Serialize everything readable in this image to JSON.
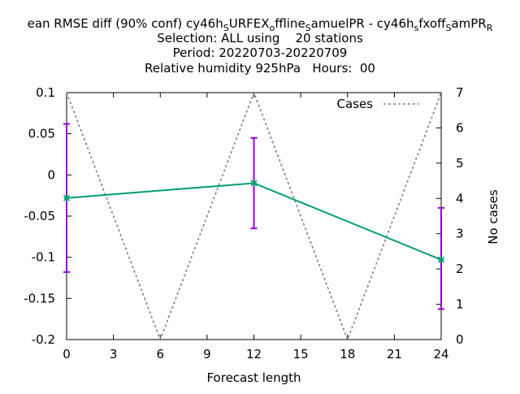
{
  "chart_data": {
    "type": "line",
    "title_lines": [
      "ean RMSE diff (90% conf) cy46h_SURFEX_offline_SamuelPR - cy46h_sfxoff_SamPR_R",
      "Selection: ALL using    20 stations",
      "Period: 20220703-20220709",
      "Relative humidity 925hPa   Hours:  00"
    ],
    "title_rich": [
      {
        "t": "ean RMSE diff (90% conf) cy46h"
      },
      {
        "t": "S",
        "sub": true
      },
      {
        "t": "URFEX"
      },
      {
        "t": "o",
        "sub": true
      },
      {
        "t": "ffline"
      },
      {
        "t": "S",
        "sub": true
      },
      {
        "t": "amuelPR - cy46h"
      },
      {
        "t": "s",
        "sub": true
      },
      {
        "t": "fxoff"
      },
      {
        "t": "S",
        "sub": true
      },
      {
        "t": "amPR"
      },
      {
        "t": "R",
        "sub": true
      }
    ],
    "xlabel": "Forecast length",
    "ylabel_right": "No cases",
    "xlim": [
      0,
      24
    ],
    "ylim": [
      -0.2,
      0.1
    ],
    "y2lim": [
      0,
      7
    ],
    "x_ticks": [
      0,
      3,
      6,
      9,
      12,
      15,
      18,
      21,
      24
    ],
    "x_tick_labels": [
      "0",
      "3",
      "6",
      "9",
      "12",
      "15",
      "18",
      "21",
      "24"
    ],
    "y_ticks": [
      0.1,
      0.05,
      0,
      -0.05,
      -0.1,
      -0.15,
      -0.2
    ],
    "y_tick_labels": [
      "0.1",
      "0.05",
      "0",
      "-0.05",
      "-0.1",
      "-0.15",
      "-0.2"
    ],
    "y2_ticks": [
      7,
      6,
      5,
      4,
      3,
      2,
      1,
      0
    ],
    "y2_tick_labels": [
      "7",
      "6",
      "5",
      "4",
      "3",
      "2",
      "1",
      "0"
    ],
    "legend_position": "top-right",
    "grid": false,
    "series": [
      {
        "axis": "left",
        "color": "#009e73",
        "errorbar_color": "#9400d3",
        "x": [
          0,
          12,
          24
        ],
        "y": [
          -0.028,
          -0.01,
          -0.103
        ],
        "err_low": [
          -0.118,
          -0.065,
          -0.163
        ],
        "err_high": [
          0.062,
          0.045,
          -0.04
        ]
      },
      {
        "name": "Cases",
        "axis": "right",
        "color": "#808080",
        "dashed": true,
        "x": [
          0,
          6,
          12,
          18,
          24
        ],
        "y": [
          7,
          0,
          7,
          0,
          7
        ]
      }
    ]
  }
}
